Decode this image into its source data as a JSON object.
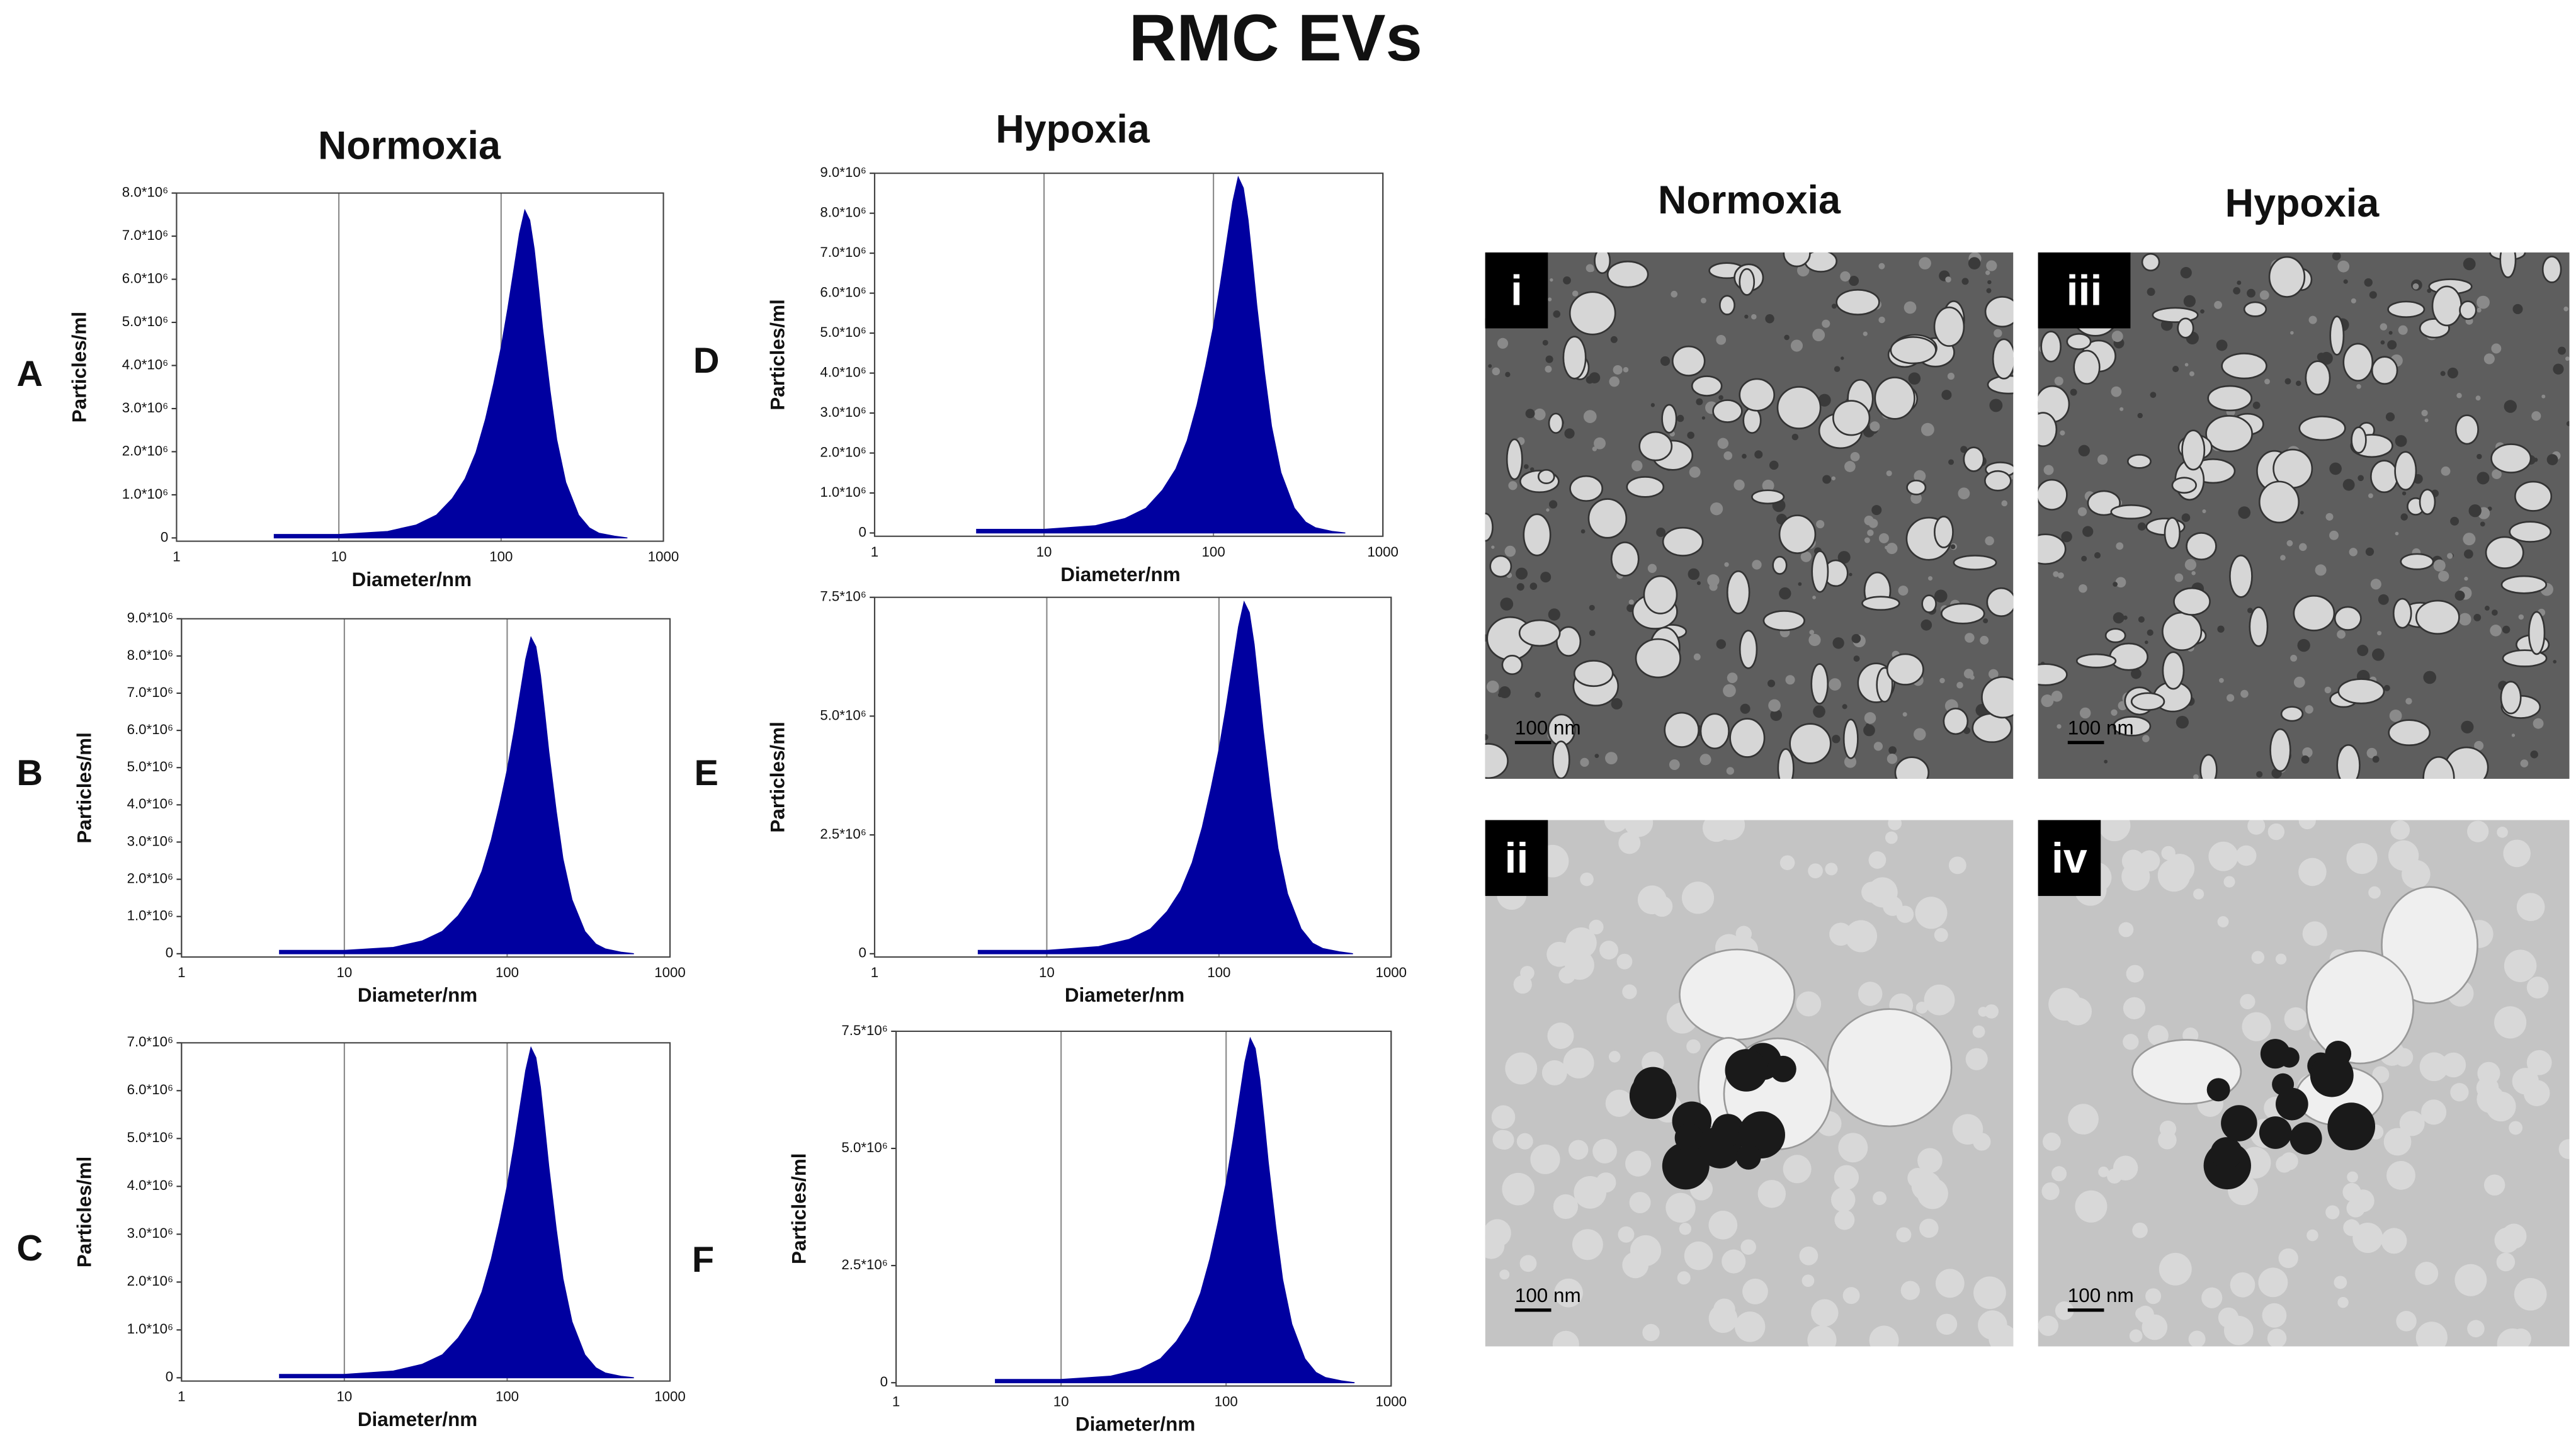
{
  "title": "RMC EVs",
  "headings": {
    "normoxia_left": "Normoxia",
    "hypoxia_left": "Hypoxia",
    "normoxia_right": "Normoxia",
    "hypoxia_right": "Hypoxia"
  },
  "tem": [
    {
      "label": "i",
      "scale_bar": "100 nm"
    },
    {
      "label": "ii",
      "scale_bar": "100 nm"
    },
    {
      "label": "iii",
      "scale_bar": "100 nm"
    },
    {
      "label": "iv",
      "scale_bar": "100 nm"
    }
  ],
  "chart_data": [
    {
      "type": "area",
      "panel": "A",
      "xlabel": "Diameter/nm",
      "ylabel": "Particles/ml",
      "color": "#0000a0",
      "xscale": "log",
      "grid": "x",
      "xlim": [
        1,
        1000
      ],
      "xticks": [
        1,
        10,
        100,
        1000
      ],
      "ylim": [
        0,
        8000000
      ],
      "yticks": [
        0,
        {
          "value": 1000000,
          "label": "1.0*10⁶"
        },
        {
          "value": 2000000,
          "label": "2.0*10⁶"
        },
        {
          "value": 3000000,
          "label": "3.0*10⁶"
        },
        {
          "value": 4000000,
          "label": "4.0*10⁶"
        },
        {
          "value": 5000000,
          "label": "5.0*10⁶"
        },
        {
          "value": 6000000,
          "label": "6.0*10⁶"
        },
        {
          "value": 7000000,
          "label": "7.0*10⁶"
        },
        {
          "value": 8000000,
          "label": "8.0*10⁶"
        }
      ],
      "x": [
        4,
        10,
        20,
        30,
        40,
        50,
        60,
        70,
        80,
        90,
        100,
        110,
        120,
        130,
        140,
        150,
        160,
        170,
        180,
        200,
        220,
        250,
        300,
        350,
        400,
        500,
        600
      ],
      "values": [
        80000.0,
        80000.0,
        150000.0,
        300000.0,
        530000.0,
        910000.0,
        1370000.0,
        1980000.0,
        2740000.0,
        3570000.0,
        4410000.0,
        5320000.0,
        6230000.0,
        7070000.0,
        7600000.0,
        7370000.0,
        6690000.0,
        5780000.0,
        4860000.0,
        3420000.0,
        2280000.0,
        1290000.0,
        530000.0,
        230000.0,
        110000.0,
        40000.0,
        0
      ]
    },
    {
      "type": "area",
      "panel": "B",
      "xlabel": "Diameter/nm",
      "ylabel": "Particles/ml",
      "color": "#0000a0",
      "xscale": "log",
      "grid": "x",
      "xlim": [
        1,
        1000
      ],
      "xticks": [
        1,
        10,
        100,
        1000
      ],
      "ylim": [
        0,
        9000000
      ],
      "yticks": [
        0,
        {
          "value": 1000000,
          "label": "1.0*10⁶"
        },
        {
          "value": 2000000,
          "label": "2.0*10⁶"
        },
        {
          "value": 3000000,
          "label": "3.0*10⁶"
        },
        {
          "value": 4000000,
          "label": "4.0*10⁶"
        },
        {
          "value": 5000000,
          "label": "5.0*10⁶"
        },
        {
          "value": 6000000,
          "label": "6.0*10⁶"
        },
        {
          "value": 7000000,
          "label": "7.0*10⁶"
        },
        {
          "value": 8000000,
          "label": "8.0*10⁶"
        },
        {
          "value": 9000000,
          "label": "9.0*10⁶"
        }
      ],
      "x": [
        4,
        10,
        20,
        30,
        40,
        50,
        60,
        70,
        80,
        90,
        100,
        110,
        120,
        130,
        140,
        150,
        160,
        170,
        180,
        200,
        220,
        250,
        300,
        350,
        400,
        500,
        600
      ],
      "values": [
        90000.0,
        90000.0,
        170000.0,
        340000.0,
        600000.0,
        1020000.0,
        1530000.0,
        2210000.0,
        3060000.0,
        4000000.0,
        4930000.0,
        5950000.0,
        6970000.0,
        7910000.0,
        8500000.0,
        8250000.0,
        7480000.0,
        6460000.0,
        5440000.0,
        3830000.0,
        2550000.0,
        1450000.0,
        600000.0,
        260000.0,
        130000.0,
        40000.0,
        0
      ]
    },
    {
      "type": "area",
      "panel": "C",
      "xlabel": "Diameter/nm",
      "ylabel": "Particles/ml",
      "color": "#0000a0",
      "xscale": "log",
      "grid": "x",
      "xlim": [
        1,
        1000
      ],
      "xticks": [
        1,
        10,
        100,
        1000
      ],
      "ylim": [
        0,
        7000000
      ],
      "yticks": [
        0,
        {
          "value": 1000000,
          "label": "1.0*10⁶"
        },
        {
          "value": 2000000,
          "label": "2.0*10⁶"
        },
        {
          "value": 3000000,
          "label": "3.0*10⁶"
        },
        {
          "value": 4000000,
          "label": "4.0*10⁶"
        },
        {
          "value": 5000000,
          "label": "5.0*10⁶"
        },
        {
          "value": 6000000,
          "label": "6.0*10⁶"
        },
        {
          "value": 7000000,
          "label": "7.0*10⁶"
        }
      ],
      "x": [
        4,
        10,
        20,
        30,
        40,
        50,
        60,
        70,
        80,
        90,
        100,
        110,
        120,
        130,
        140,
        150,
        160,
        170,
        180,
        200,
        220,
        250,
        300,
        350,
        400,
        500,
        600
      ],
      "values": [
        70000.0,
        70000.0,
        140000.0,
        280000.0,
        480000.0,
        830000.0,
        1240000.0,
        1790000.0,
        2480000.0,
        3240000.0,
        4000000.0,
        4830000.0,
        5660000.0,
        6420000.0,
        6900000.0,
        6690000.0,
        6070000.0,
        5240000.0,
        4420000.0,
        3110000.0,
        2070000.0,
        1170000.0,
        480000.0,
        210000.0,
        100000.0,
        30000.0,
        0
      ]
    },
    {
      "type": "area",
      "panel": "D",
      "xlabel": "Diameter/nm",
      "ylabel": "Particles/ml",
      "color": "#0000a0",
      "xscale": "log",
      "grid": "x",
      "xlim": [
        1,
        1000
      ],
      "xticks": [
        1,
        10,
        100,
        1000
      ],
      "ylim": [
        0,
        9000000
      ],
      "yticks": [
        0,
        {
          "value": 1000000,
          "label": "1.0*10⁶"
        },
        {
          "value": 2000000,
          "label": "2.0*10⁶"
        },
        {
          "value": 3000000,
          "label": "3.0*10⁶"
        },
        {
          "value": 4000000,
          "label": "4.0*10⁶"
        },
        {
          "value": 5000000,
          "label": "5.0*10⁶"
        },
        {
          "value": 6000000,
          "label": "6.0*10⁶"
        },
        {
          "value": 7000000,
          "label": "7.0*10⁶"
        },
        {
          "value": 8000000,
          "label": "8.0*10⁶"
        },
        {
          "value": 9000000,
          "label": "9.0*10⁶"
        }
      ],
      "x": [
        4,
        10,
        20,
        30,
        40,
        50,
        60,
        70,
        80,
        90,
        100,
        110,
        120,
        130,
        140,
        150,
        160,
        170,
        180,
        200,
        220,
        250,
        300,
        350,
        400,
        500,
        600
      ],
      "values": [
        90000.0,
        90000.0,
        180000.0,
        360000.0,
        620000.0,
        1070000.0,
        1600000.0,
        2310000.0,
        3200000.0,
        4180000.0,
        5160000.0,
        6230000.0,
        7300000.0,
        8280000.0,
        8900000.0,
        8630000.0,
        7830000.0,
        6760000.0,
        5700000.0,
        4010000.0,
        2670000.0,
        1510000.0,
        620000.0,
        270000.0,
        130000.0,
        40000.0,
        0
      ]
    },
    {
      "type": "area",
      "panel": "E",
      "xlabel": "Diameter/nm",
      "ylabel": "Particles/ml",
      "color": "#0000a0",
      "xscale": "log",
      "grid": "x",
      "xlim": [
        1,
        1000
      ],
      "xticks": [
        1,
        10,
        100,
        1000
      ],
      "ylim": [
        0,
        7500000
      ],
      "yticks": [
        0,
        {
          "value": 2500000,
          "label": "2.5*10⁶"
        },
        {
          "value": 5000000,
          "label": "5.0*10⁶"
        },
        {
          "value": 7500000,
          "label": "7.5*10⁶"
        }
      ],
      "x": [
        4,
        10,
        20,
        30,
        40,
        50,
        60,
        70,
        80,
        90,
        100,
        110,
        120,
        130,
        140,
        150,
        160,
        170,
        180,
        200,
        220,
        250,
        300,
        350,
        400,
        500,
        600
      ],
      "values": [
        70000.0,
        70000.0,
        150000.0,
        300000.0,
        520000.0,
        890000.0,
        1330000.0,
        1920000.0,
        2660000.0,
        3480000.0,
        4290000.0,
        5180000.0,
        6070000.0,
        6880000.0,
        7400000.0,
        7180000.0,
        6510000.0,
        5620000.0,
        4740000.0,
        3330000.0,
        2220000.0,
        1260000.0,
        520000.0,
        220000.0,
        110000.0,
        40000.0,
        0
      ]
    },
    {
      "type": "area",
      "panel": "F",
      "xlabel": "Diameter/nm",
      "ylabel": "Particles/ml",
      "color": "#0000a0",
      "xscale": "log",
      "grid": "x",
      "xlim": [
        1,
        1000
      ],
      "xticks": [
        1,
        10,
        100,
        1000
      ],
      "ylim": [
        0,
        7500000
      ],
      "yticks": [
        0,
        {
          "value": 2500000,
          "label": "2.5*10⁶"
        },
        {
          "value": 5000000,
          "label": "5.0*10⁶"
        },
        {
          "value": 7500000,
          "label": "7.5*10⁶"
        }
      ],
      "x": [
        4,
        10,
        20,
        30,
        40,
        50,
        60,
        70,
        80,
        90,
        100,
        110,
        120,
        130,
        140,
        150,
        160,
        170,
        180,
        200,
        220,
        250,
        300,
        350,
        400,
        500,
        600
      ],
      "values": [
        70000.0,
        70000.0,
        140000.0,
        290000.0,
        510000.0,
        880000.0,
        1320000.0,
        1910000.0,
        2650000.0,
        3460000.0,
        4260000.0,
        5150000.0,
        6030000.0,
        6840000.0,
        7350000.0,
        7130000.0,
        6470000.0,
        5590000.0,
        4700000.0,
        3310000.0,
        2200000.0,
        1250000.0,
        510000.0,
        220000.0,
        110000.0,
        40000.0,
        0
      ]
    }
  ]
}
